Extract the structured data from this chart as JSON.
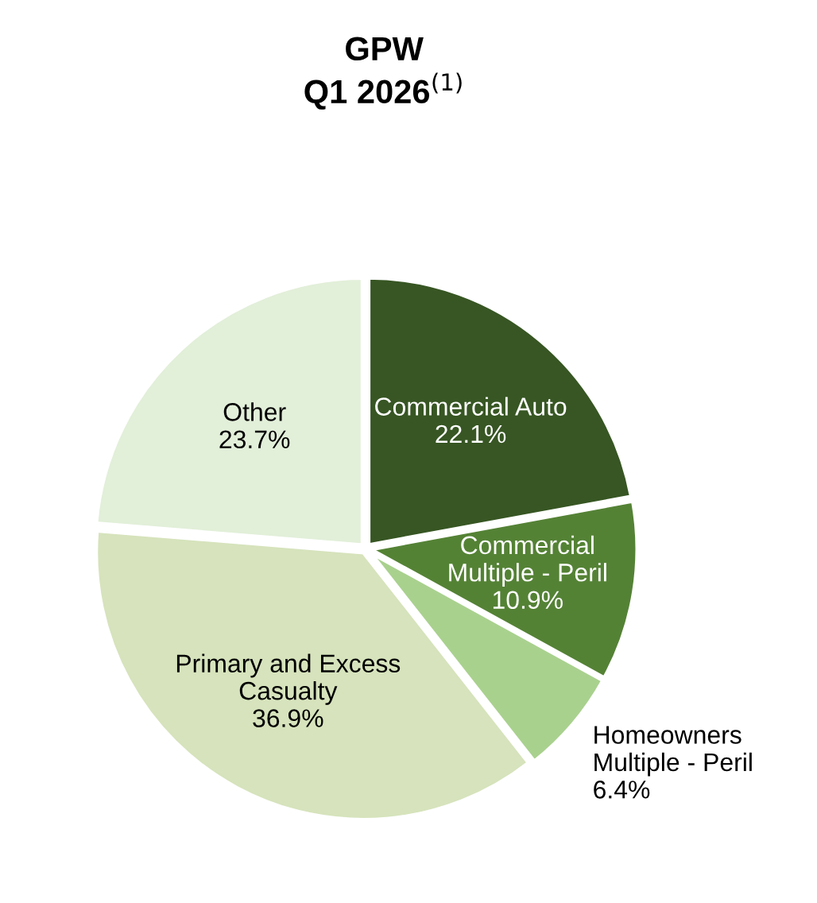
{
  "chart_data": {
    "type": "pie",
    "title": "GPW\nQ1 2026$^{(1)}$",
    "categories": [
      "Commercial Auto",
      "Commercial\nMultiple - Peril",
      "Homeowners\nMultiple - Peril",
      "Primary and Excess\nCasualty",
      "Other"
    ],
    "values": [
      22.1,
      10.9,
      6.4,
      36.9,
      23.7
    ],
    "value_labels": [
      "22.1%",
      "10.9%",
      "6.4%",
      "36.9%",
      "23.7%"
    ],
    "colors": [
      "#375623",
      "#548235",
      "#a9d18e",
      "#d6e3bc",
      "#e2efd9"
    ]
  }
}
